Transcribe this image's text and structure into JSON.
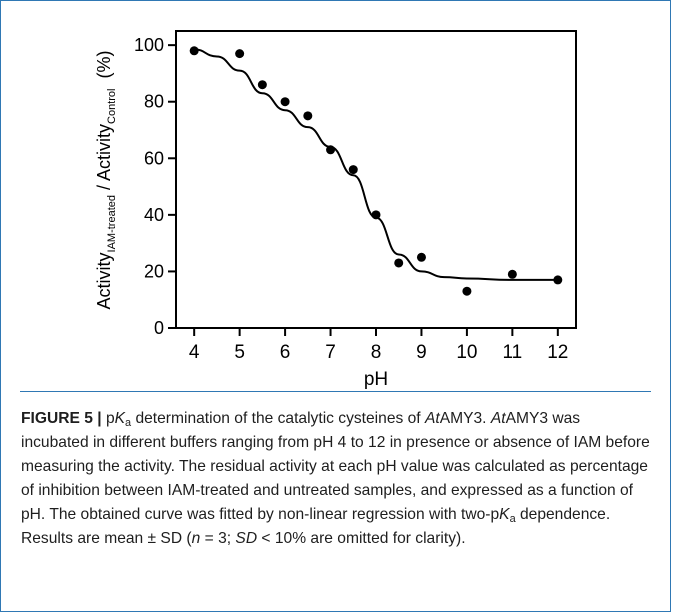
{
  "chart_data": {
    "type": "scatter",
    "xlabel": "pH",
    "ylabel": {
      "base1": "Activity",
      "sub1": "IAM-treated",
      "sep": " / ",
      "base2": "Activity",
      "sub2": "Control",
      "unit": "(%)"
    },
    "xlim": [
      3.6,
      12.4
    ],
    "ylim": [
      0,
      105
    ],
    "xticks": [
      "4",
      "5",
      "6",
      "7",
      "8",
      "9",
      "10",
      "11",
      "12"
    ],
    "yticks": [
      "0",
      "20",
      "40",
      "60",
      "80",
      "100"
    ],
    "points": [
      {
        "x": 4,
        "y": 98
      },
      {
        "x": 5,
        "y": 97
      },
      {
        "x": 5.5,
        "y": 86
      },
      {
        "x": 6,
        "y": 80
      },
      {
        "x": 6.5,
        "y": 75
      },
      {
        "x": 7,
        "y": 63
      },
      {
        "x": 7.5,
        "y": 56
      },
      {
        "x": 8,
        "y": 40
      },
      {
        "x": 8.5,
        "y": 23
      },
      {
        "x": 9,
        "y": 25
      },
      {
        "x": 10,
        "y": 13
      },
      {
        "x": 11,
        "y": 19
      },
      {
        "x": 12,
        "y": 17
      }
    ],
    "fit_curve": {
      "x": [
        4,
        4.5,
        5,
        5.5,
        6,
        6.5,
        7,
        7.5,
        8,
        8.5,
        9,
        9.5,
        10,
        11,
        12
      ],
      "y": [
        98.5,
        96,
        91,
        83,
        77,
        71,
        64,
        54,
        39,
        26,
        20,
        18,
        17.5,
        17,
        17
      ]
    },
    "grid": false,
    "legend": "none",
    "marker_color": "#000000",
    "line_color": "#000000"
  },
  "caption": {
    "figure_label": "FIGURE 5 |",
    "parts": [
      {
        "t": " p"
      },
      {
        "t": "K",
        "i": true
      },
      {
        "t": "a",
        "sub": true
      },
      {
        "t": " determination of the catalytic cysteines of "
      },
      {
        "t": "At",
        "i": true
      },
      {
        "t": "AMY3. "
      },
      {
        "t": "At",
        "i": true
      },
      {
        "t": "AMY3 was incubated in different buffers ranging from pH 4 to 12 in presence or absence of IAM before measuring the activity. The residual activity at each pH value was calculated as percentage of inhibition between IAM-treated and untreated samples, and expressed as a function of pH. The obtained curve was fitted by non-linear regression with two-p"
      },
      {
        "t": "K",
        "i": true
      },
      {
        "t": "a",
        "sub": true
      },
      {
        "t": " dependence. Results are mean ± SD ("
      },
      {
        "t": "n",
        "i": true
      },
      {
        "t": " = 3; "
      },
      {
        "t": "SD",
        "i": true
      },
      {
        "t": " < 10% are omitted for clarity)."
      }
    ]
  },
  "colors": {
    "border": "#2f78b4",
    "text": "#1e1e1e"
  }
}
